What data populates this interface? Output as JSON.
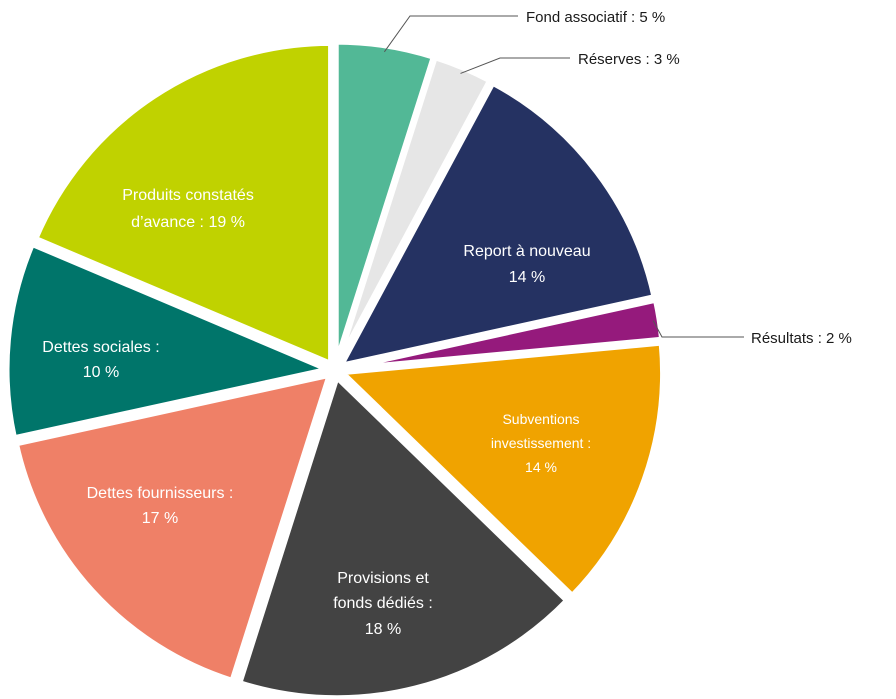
{
  "chart_data": {
    "type": "pie",
    "title": "",
    "slices": [
      {
        "label": "Fond associatif : 5 %",
        "value": 5,
        "color": "#52b896",
        "label_color": "#1a1a1a"
      },
      {
        "label": "Réserves : 3 %",
        "value": 3,
        "color": "#e6e6e6",
        "label_color": "#1a1a1a"
      },
      {
        "label": "Report à nouveau",
        "label2": "14 %",
        "value": 14,
        "color": "#253262",
        "label_color": "#ffffff"
      },
      {
        "label": "Résultats : 2 %",
        "value": 2,
        "color": "#951a7c",
        "label_color": "#1a1a1a"
      },
      {
        "label": "Subventions",
        "label2": "investissement :",
        "label3": "14 %",
        "value": 14,
        "color": "#f0a300",
        "label_color": "#ffffff"
      },
      {
        "label": "Provisions et",
        "label2": "fonds dédiés :",
        "label3": "18 %",
        "value": 18,
        "color": "#434343",
        "label_color": "#ffffff"
      },
      {
        "label": "Dettes fournisseurs :",
        "label2": "17 %",
        "value": 17,
        "color": "#ef8067",
        "label_color": "#ffffff"
      },
      {
        "label": "Dettes sociales :",
        "label2": "10 %",
        "value": 10,
        "color": "#00756a",
        "label_color": "#ffffff"
      },
      {
        "label": "Produits constatés",
        "label2": "d’avance : 19 %",
        "value": 19,
        "color": "#c0d200",
        "label_color": "#ffffff"
      }
    ]
  }
}
